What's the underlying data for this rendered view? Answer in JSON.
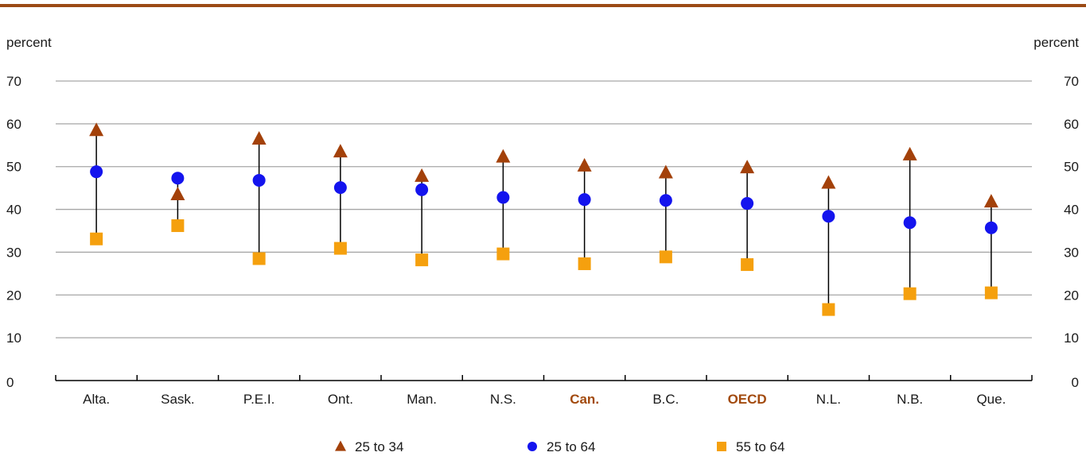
{
  "colors": {
    "rule": "#9b4a14",
    "grid": "#a6a6a6",
    "axis": "#000000",
    "connector": "#000000",
    "highlight_text": "#a24a0e",
    "triangle": "#a3410a",
    "circle": "#1414ee",
    "square": "#f5a00e"
  },
  "chart_data": {
    "type": "scatter",
    "left_unit": "percent",
    "right_unit": "percent",
    "ylim": [
      0,
      70
    ],
    "y_ticks": [
      "0",
      "10",
      "20",
      "30",
      "40",
      "50",
      "60",
      "70"
    ],
    "grid": true,
    "legend_position": "bottom",
    "categories": [
      "Alta.",
      "Sask.",
      "P.E.I.",
      "Ont.",
      "Man.",
      "N.S.",
      "Can.",
      "B.C.",
      "OECD",
      "N.L.",
      "N.B.",
      "Que."
    ],
    "highlighted_categories": [
      "Can.",
      "OECD"
    ],
    "series": [
      {
        "name": "25 to 34",
        "marker": "triangle",
        "values": [
          58.5,
          43.5,
          56.5,
          53.5,
          47.8,
          52.3,
          50.2,
          48.6,
          49.8,
          46.2,
          52.8,
          41.8
        ]
      },
      {
        "name": "25 to 64",
        "marker": "circle",
        "values": [
          48.8,
          47.3,
          46.8,
          45.1,
          44.6,
          42.8,
          42.3,
          42.1,
          41.4,
          38.4,
          36.9,
          35.7
        ]
      },
      {
        "name": "55 to 64",
        "marker": "square",
        "values": [
          33.1,
          36.2,
          28.5,
          30.9,
          28.2,
          29.6,
          27.3,
          28.9,
          27.1,
          16.6,
          20.3,
          20.5
        ]
      }
    ]
  }
}
